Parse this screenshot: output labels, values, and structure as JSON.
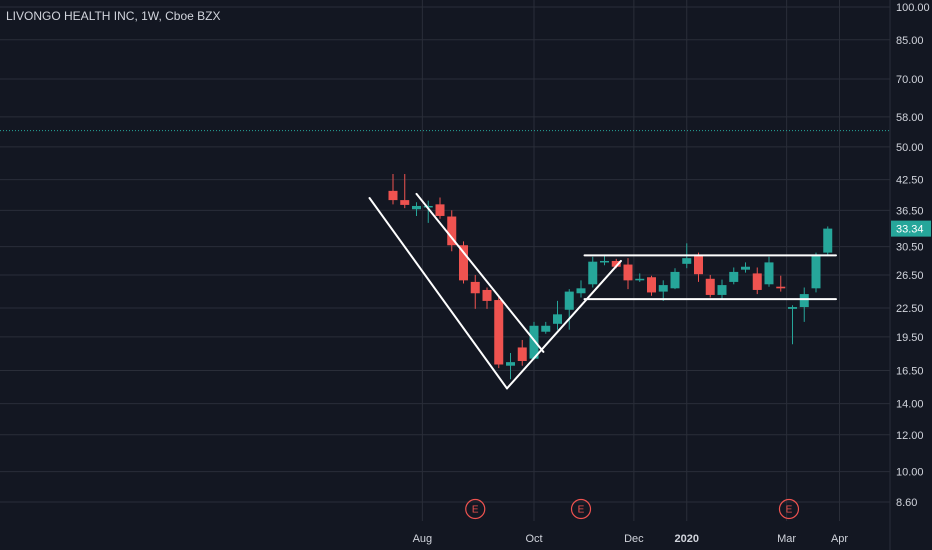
{
  "header": {
    "title": "LIVONGO HEALTH INC, 1W, Cboe BZX"
  },
  "colors": {
    "background": "#131722",
    "grid": "#2a2e39",
    "up": "#26a69a",
    "down": "#ef5350",
    "axis_text": "#d1d4dc",
    "drawing": "#ffffff",
    "price_line": "#26a69a"
  },
  "chart_data": {
    "type": "candlestick",
    "title": "LIVONGO HEALTH INC, 1W, Cboe BZX",
    "y_scale": "log",
    "ylim": [
      7.6,
      104
    ],
    "y_ticks": [
      "100.00",
      "85.00",
      "70.00",
      "58.00",
      "50.00",
      "42.50",
      "36.50",
      "30.50",
      "26.50",
      "22.50",
      "19.50",
      "16.50",
      "14.00",
      "12.00",
      "10.00",
      "8.60"
    ],
    "x_ticks": [
      {
        "label": "Aug",
        "index": 2.5,
        "bold": false
      },
      {
        "label": "Oct",
        "index": 12,
        "bold": false
      },
      {
        "label": "Dec",
        "index": 20.5,
        "bold": false
      },
      {
        "label": "2020",
        "index": 25,
        "bold": true
      },
      {
        "label": "Mar",
        "index": 33.5,
        "bold": false
      },
      {
        "label": "Apr",
        "index": 38,
        "bold": false
      }
    ],
    "candles": [
      {
        "o": 40.2,
        "h": 43.7,
        "l": 37.6,
        "c": 38.4
      },
      {
        "o": 38.4,
        "h": 43.7,
        "l": 36.9,
        "c": 37.5
      },
      {
        "o": 36.7,
        "h": 38.0,
        "l": 35.5,
        "c": 37.3
      },
      {
        "o": 37.2,
        "h": 38.3,
        "l": 34.3,
        "c": 37.3
      },
      {
        "o": 37.6,
        "h": 38.9,
        "l": 35.0,
        "c": 35.5
      },
      {
        "o": 35.4,
        "h": 36.5,
        "l": 29.8,
        "c": 30.7
      },
      {
        "o": 30.7,
        "h": 31.3,
        "l": 25.4,
        "c": 25.8
      },
      {
        "o": 25.6,
        "h": 26.5,
        "l": 22.4,
        "c": 24.2
      },
      {
        "o": 24.6,
        "h": 24.9,
        "l": 22.4,
        "c": 23.3
      },
      {
        "o": 23.4,
        "h": 23.9,
        "l": 16.7,
        "c": 17.0
      },
      {
        "o": 16.9,
        "h": 18.0,
        "l": 15.8,
        "c": 17.2
      },
      {
        "o": 18.5,
        "h": 19.2,
        "l": 16.9,
        "c": 17.3
      },
      {
        "o": 17.5,
        "h": 21.0,
        "l": 17.4,
        "c": 20.6
      },
      {
        "o": 20.0,
        "h": 21.0,
        "l": 19.8,
        "c": 20.6
      },
      {
        "o": 20.8,
        "h": 23.3,
        "l": 20.2,
        "c": 21.8
      },
      {
        "o": 22.3,
        "h": 24.7,
        "l": 20.2,
        "c": 24.4
      },
      {
        "o": 24.2,
        "h": 25.8,
        "l": 23.7,
        "c": 24.8
      },
      {
        "o": 25.3,
        "h": 29.0,
        "l": 24.9,
        "c": 28.3
      },
      {
        "o": 28.2,
        "h": 29.2,
        "l": 27.8,
        "c": 28.4
      },
      {
        "o": 28.4,
        "h": 28.7,
        "l": 27.4,
        "c": 27.6
      },
      {
        "o": 27.9,
        "h": 28.8,
        "l": 24.7,
        "c": 25.8
      },
      {
        "o": 25.8,
        "h": 26.7,
        "l": 25.6,
        "c": 26.0
      },
      {
        "o": 26.2,
        "h": 26.4,
        "l": 23.9,
        "c": 24.3
      },
      {
        "o": 24.4,
        "h": 25.8,
        "l": 23.3,
        "c": 25.2
      },
      {
        "o": 24.8,
        "h": 27.4,
        "l": 24.7,
        "c": 26.9
      },
      {
        "o": 28.0,
        "h": 31.0,
        "l": 27.4,
        "c": 28.8
      },
      {
        "o": 29.2,
        "h": 29.6,
        "l": 25.6,
        "c": 26.6
      },
      {
        "o": 26.0,
        "h": 26.5,
        "l": 23.7,
        "c": 24.0
      },
      {
        "o": 24.0,
        "h": 25.9,
        "l": 23.5,
        "c": 25.2
      },
      {
        "o": 25.6,
        "h": 27.5,
        "l": 25.3,
        "c": 26.9
      },
      {
        "o": 27.2,
        "h": 28.2,
        "l": 26.8,
        "c": 27.6
      },
      {
        "o": 26.7,
        "h": 27.5,
        "l": 24.1,
        "c": 24.6
      },
      {
        "o": 25.3,
        "h": 29.0,
        "l": 25.0,
        "c": 28.2
      },
      {
        "o": 25.0,
        "h": 26.4,
        "l": 24.4,
        "c": 24.8
      },
      {
        "o": 22.4,
        "h": 22.8,
        "l": 18.8,
        "c": 22.6
      },
      {
        "o": 22.6,
        "h": 24.9,
        "l": 21.0,
        "c": 24.1
      },
      {
        "o": 24.8,
        "h": 29.6,
        "l": 24.3,
        "c": 29.2
      },
      {
        "o": 29.6,
        "h": 33.7,
        "l": 29.1,
        "c": 33.34
      }
    ],
    "trendlines": [
      {
        "name": "falling-channel-upper",
        "from": {
          "index": 2.0,
          "value": 39.6
        },
        "to": {
          "index": 12.8,
          "value": 18.1
        }
      },
      {
        "name": "falling-channel-lower",
        "from": {
          "index": -2.0,
          "value": 38.8
        },
        "to": {
          "index": 9.7,
          "value": 15.1
        }
      },
      {
        "name": "rising-line",
        "from": {
          "index": 9.7,
          "value": 15.1
        },
        "to": {
          "index": 19.4,
          "value": 28.4
        }
      },
      {
        "name": "range-top",
        "from": {
          "index": 16.3,
          "value": 29.2
        },
        "to": {
          "index": 37.7,
          "value": 29.2
        }
      },
      {
        "name": "range-bottom",
        "from": {
          "index": 16.3,
          "value": 23.5
        },
        "to": {
          "index": 37.7,
          "value": 23.5
        }
      }
    ],
    "price_line": {
      "value": 54.2
    },
    "last_price": {
      "label": "33.34",
      "value": 33.34
    },
    "earnings": [
      {
        "label": "E",
        "index": 7.0
      },
      {
        "label": "E",
        "index": 16.0
      },
      {
        "label": "E",
        "index": 33.7
      }
    ],
    "grid": true
  }
}
